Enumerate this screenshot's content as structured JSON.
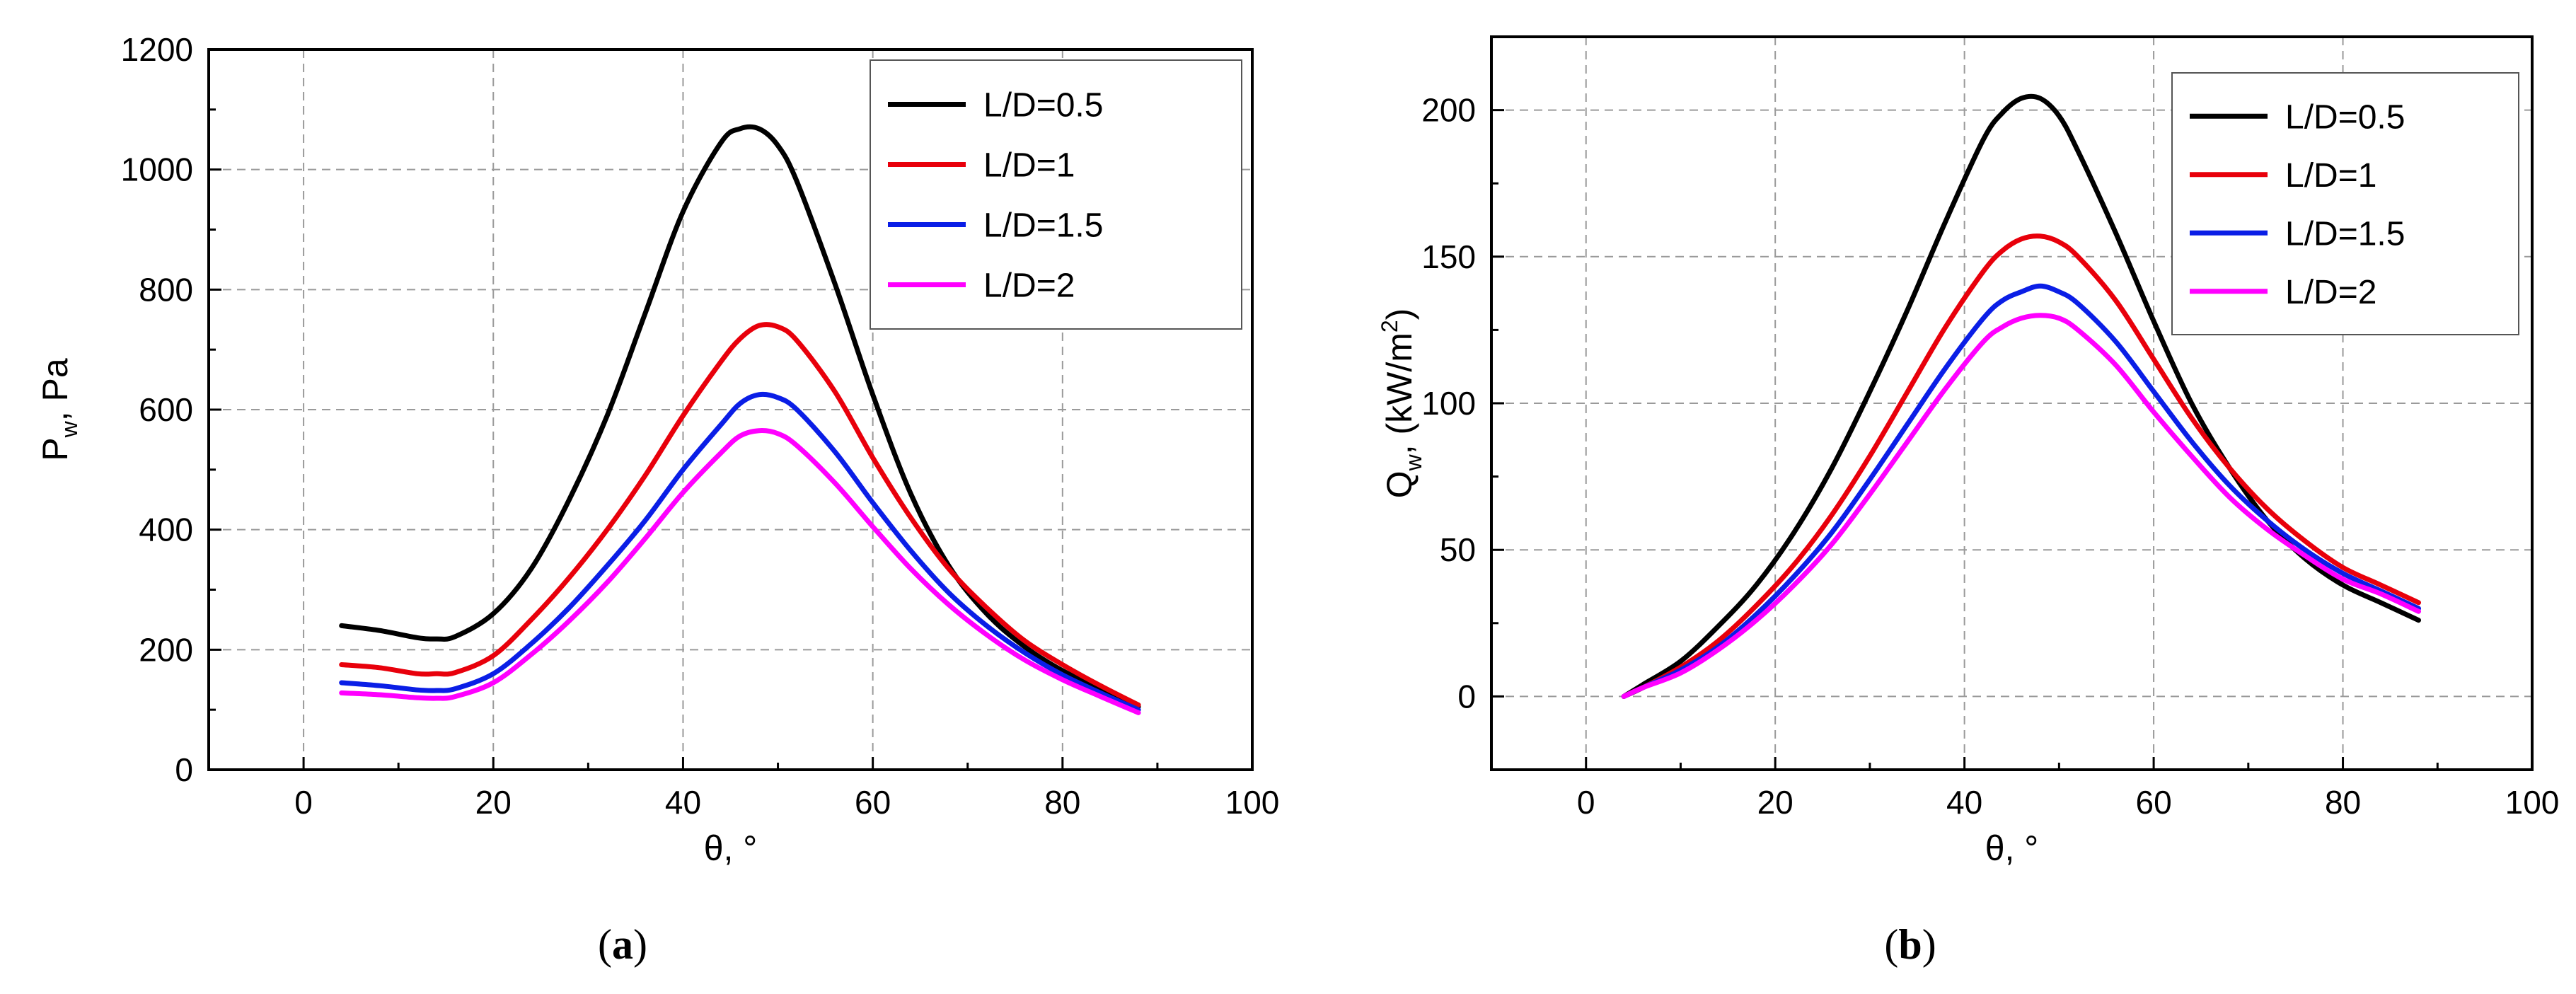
{
  "colors": {
    "L/D=0.5": "#000000",
    "L/D=1": "#e8000b",
    "L/D=1.5": "#0a1ee6",
    "L/D=2": "#ff00ff"
  },
  "captions": [
    "(a)",
    "(b)"
  ],
  "chart_data": [
    {
      "type": "line",
      "caption": "(a)",
      "title": "",
      "xlabel": "θ, °",
      "ylabel_main": "P",
      "ylabel_sub": "w",
      "ylabel_rest": ", Pa",
      "xlim": [
        -10,
        100
      ],
      "ylim": [
        0,
        1200
      ],
      "xticks": [
        "0",
        "20",
        "40",
        "60",
        "80",
        "100"
      ],
      "yticks": [
        "0",
        "200",
        "400",
        "600",
        "800",
        "1000",
        "1200"
      ],
      "grid": true,
      "legend_position": "top-right",
      "series": [
        {
          "name": "L/D=0.5",
          "x": [
            4,
            8,
            12,
            14,
            16,
            20,
            24,
            28,
            32,
            36,
            40,
            44,
            46,
            48,
            50,
            52,
            56,
            60,
            64,
            68,
            72,
            76,
            80,
            84,
            88
          ],
          "y": [
            240,
            232,
            220,
            218,
            222,
            260,
            335,
            450,
            590,
            760,
            930,
            1045,
            1068,
            1068,
            1040,
            980,
            810,
            625,
            460,
            340,
            260,
            205,
            165,
            135,
            105
          ]
        },
        {
          "name": "L/D=1",
          "x": [
            4,
            8,
            12,
            14,
            16,
            20,
            24,
            28,
            32,
            36,
            40,
            44,
            46,
            48,
            50,
            52,
            56,
            60,
            64,
            68,
            72,
            76,
            80,
            84,
            88
          ],
          "y": [
            175,
            170,
            160,
            160,
            162,
            190,
            250,
            320,
            400,
            490,
            590,
            680,
            718,
            740,
            738,
            715,
            630,
            520,
            420,
            335,
            270,
            215,
            175,
            140,
            108
          ]
        },
        {
          "name": "L/D=1.5",
          "x": [
            4,
            8,
            12,
            14,
            16,
            20,
            24,
            28,
            32,
            36,
            40,
            44,
            46,
            48,
            50,
            52,
            56,
            60,
            64,
            68,
            72,
            76,
            80,
            84,
            88
          ],
          "y": [
            145,
            140,
            133,
            132,
            135,
            160,
            210,
            270,
            340,
            415,
            500,
            575,
            610,
            625,
            620,
            600,
            530,
            445,
            365,
            295,
            240,
            195,
            158,
            128,
            100
          ]
        },
        {
          "name": "L/D=2",
          "x": [
            4,
            8,
            12,
            14,
            16,
            20,
            24,
            28,
            32,
            36,
            40,
            44,
            46,
            48,
            50,
            52,
            56,
            60,
            64,
            68,
            72,
            76,
            80,
            84,
            88
          ],
          "y": [
            128,
            125,
            120,
            119,
            122,
            145,
            192,
            248,
            312,
            385,
            462,
            528,
            556,
            565,
            560,
            540,
            478,
            405,
            335,
            275,
            225,
            183,
            150,
            122,
            95
          ]
        }
      ]
    },
    {
      "type": "line",
      "caption": "(b)",
      "title": "",
      "xlabel": "θ, °",
      "ylabel_main": "Q",
      "ylabel_sub": "w",
      "ylabel_rest": ", (kW/m",
      "ylabel_sup": "2",
      "ylabel_end": ")",
      "xlim": [
        -10,
        100
      ],
      "ylim": [
        -25,
        225
      ],
      "xticks": [
        "0",
        "20",
        "40",
        "60",
        "80",
        "100"
      ],
      "yticks": [
        "0",
        "50",
        "100",
        "150",
        "200"
      ],
      "grid": true,
      "legend_position": "top-right",
      "series": [
        {
          "name": "L/D=0.5",
          "x": [
            4,
            6,
            10,
            14,
            18,
            22,
            26,
            30,
            34,
            38,
            42,
            44,
            46,
            48,
            50,
            52,
            56,
            60,
            64,
            68,
            72,
            76,
            80,
            84,
            88
          ],
          "y": [
            0,
            4,
            12,
            24,
            38,
            56,
            78,
            104,
            132,
            162,
            190,
            199,
            204,
            204,
            198,
            186,
            158,
            128,
            100,
            78,
            60,
            47,
            38,
            32,
            26
          ]
        },
        {
          "name": "L/D=1",
          "x": [
            4,
            6,
            10,
            14,
            18,
            22,
            26,
            30,
            34,
            38,
            42,
            44,
            46,
            48,
            50,
            52,
            56,
            60,
            64,
            68,
            72,
            76,
            80,
            84,
            88
          ],
          "y": [
            0,
            3,
            10,
            19,
            31,
            45,
            62,
            82,
            104,
            126,
            145,
            152,
            156,
            157,
            155,
            150,
            135,
            115,
            95,
            78,
            64,
            53,
            44,
            38,
            32
          ]
        },
        {
          "name": "L/D=1.5",
          "x": [
            4,
            6,
            10,
            14,
            18,
            22,
            26,
            30,
            34,
            38,
            42,
            44,
            46,
            48,
            50,
            52,
            56,
            60,
            64,
            68,
            72,
            76,
            80,
            84,
            88
          ],
          "y": [
            0,
            3,
            9,
            17,
            28,
            41,
            56,
            74,
            93,
            112,
            129,
            135,
            138,
            140,
            138,
            134,
            121,
            104,
            87,
            72,
            60,
            50,
            42,
            36,
            30
          ]
        },
        {
          "name": "L/D=2",
          "x": [
            4,
            6,
            10,
            14,
            18,
            22,
            26,
            30,
            34,
            38,
            42,
            44,
            46,
            48,
            50,
            52,
            56,
            60,
            64,
            68,
            72,
            76,
            80,
            84,
            88
          ],
          "y": [
            0,
            3,
            8,
            16,
            26,
            38,
            52,
            69,
            87,
            105,
            121,
            126,
            129,
            130,
            129,
            125,
            113,
            97,
            82,
            68,
            57,
            48,
            40,
            35,
            29
          ]
        }
      ]
    }
  ]
}
